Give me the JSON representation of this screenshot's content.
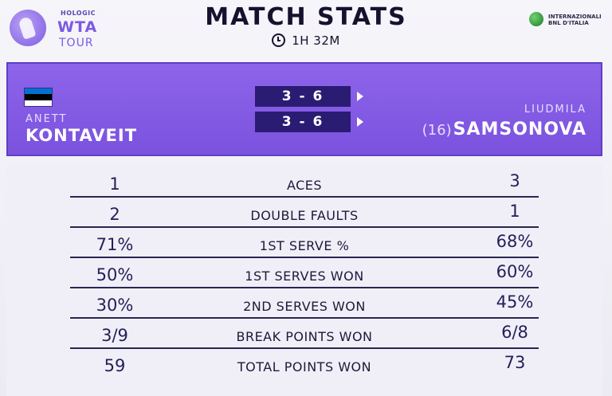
{
  "header": {
    "logo_sponsor": "HOLOGIC",
    "logo_name": "WTA",
    "logo_tour": "TOUR",
    "title": "MATCH STATS",
    "duration": "1H 32M",
    "sponsor_right_line1": "INTERNAZIONALI",
    "sponsor_right_line2": "BNL D'ITALIA"
  },
  "match": {
    "player1": {
      "first": "ANETT",
      "last": "KONTAVEIT",
      "flag": "Estonia"
    },
    "player2": {
      "first": "LIUDMILA",
      "seed": "(16)",
      "last": "SAMSONOVA"
    },
    "sets": [
      "3 - 6",
      "3 - 6"
    ]
  },
  "stats": [
    {
      "label": "ACES",
      "left": "1",
      "right": "3"
    },
    {
      "label": "DOUBLE FAULTS",
      "left": "2",
      "right": "1"
    },
    {
      "label": "1ST SERVE %",
      "left": "71%",
      "right": "68%"
    },
    {
      "label": "1ST SERVES WON",
      "left": "50%",
      "right": "60%"
    },
    {
      "label": "2ND SERVES WON",
      "left": "30%",
      "right": "45%"
    },
    {
      "label": "BREAK POINTS WON",
      "left": "3/9",
      "right": "6/8"
    },
    {
      "label": "TOTAL POINTS WON",
      "left": "59",
      "right": "73"
    }
  ],
  "colors": {
    "accent": "#7b52de",
    "set_box": "#2a1c73",
    "text_dark": "#1c1a3a"
  }
}
